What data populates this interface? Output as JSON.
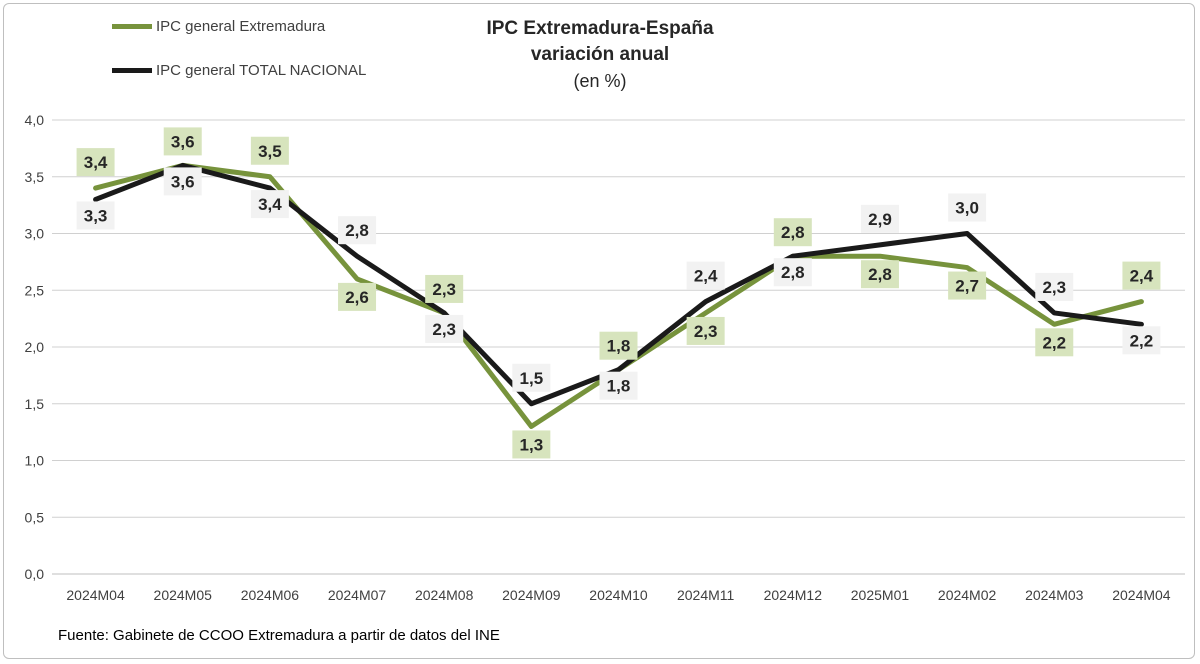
{
  "chart_data": {
    "type": "line",
    "title": "IPC Extremadura-España",
    "subtitle": "variación anual",
    "subtitle2": "(en %)",
    "xlabel": "",
    "ylabel": "",
    "ylim": [
      0,
      4
    ],
    "yticks": [
      "0,0",
      "0,5",
      "1,0",
      "1,5",
      "2,0",
      "2,5",
      "3,0",
      "3,5",
      "4,0"
    ],
    "grid": true,
    "legend_position": "top-left",
    "categories": [
      "2024M04",
      "2024M05",
      "2024M06",
      "2024M07",
      "2024M08",
      "2024M09",
      "2024M10",
      "2024M11",
      "2024M12",
      "2025M01",
      "2024M02",
      "2024M03",
      "2024M04"
    ],
    "series": [
      {
        "name": "IPC general Extremadura",
        "color": "#77933c",
        "label_bg": "#d7e4bd",
        "values": [
          3.4,
          3.6,
          3.5,
          2.6,
          2.3,
          1.3,
          1.8,
          2.3,
          2.8,
          2.8,
          2.7,
          2.2,
          2.4
        ],
        "labels": [
          "3,4",
          "3,6",
          "3,5",
          "2,6",
          "2,3",
          "1,3",
          "1,8",
          "2,3",
          "2,8",
          "2,8",
          "2,7",
          "2,2",
          "2,4"
        ]
      },
      {
        "name": "IPC general TOTAL NACIONAL",
        "color": "#1a1a1a",
        "label_bg": "#f2f2f2",
        "values": [
          3.3,
          3.6,
          3.4,
          2.8,
          2.3,
          1.5,
          1.8,
          2.4,
          2.8,
          2.9,
          3.0,
          2.3,
          2.2
        ],
        "labels": [
          "3,3",
          "3,6",
          "3,4",
          "2,8",
          "2,3",
          "1,5",
          "1,8",
          "2,4",
          "2,8",
          "2,9",
          "3,0",
          "2,3",
          "2,2"
        ]
      }
    ]
  },
  "source": "Fuente: Gabinete de CCOO Extremadura a partir de datos del INE"
}
